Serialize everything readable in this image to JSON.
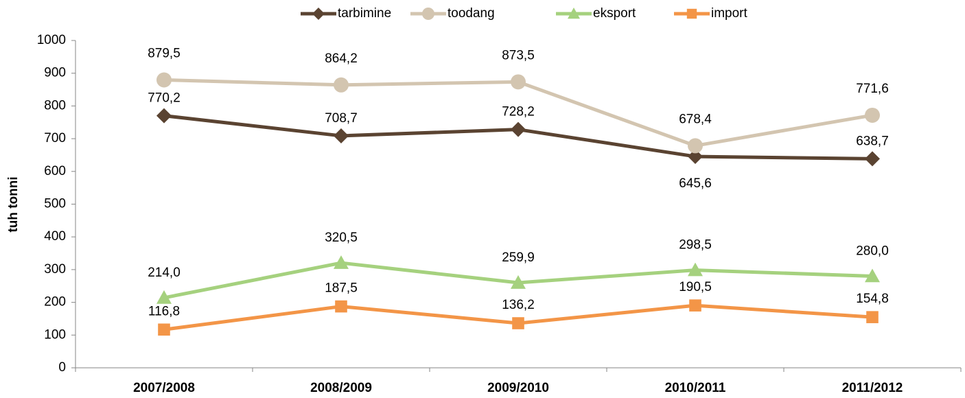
{
  "chart_data": {
    "type": "line",
    "y_label": "tuh tonni",
    "categories": [
      "2007/2008",
      "2008/2009",
      "2009/2010",
      "2010/2011",
      "2011/2012"
    ],
    "series": [
      {
        "name": "tarbimine",
        "color": "#5a4331",
        "marker": "diamond",
        "values": [
          770.2,
          708.7,
          728.2,
          645.6,
          638.7
        ],
        "value_labels": [
          "770,2",
          "708,7",
          "728,2",
          "645,6",
          "638,7"
        ]
      },
      {
        "name": "toodang",
        "color": "#d3c5b0",
        "marker": "circle",
        "values": [
          879.5,
          864.2,
          873.5,
          678.4,
          771.6
        ],
        "value_labels": [
          "879,5",
          "864,2",
          "873,5",
          "678,4",
          "771,6"
        ]
      },
      {
        "name": "eksport",
        "color": "#a5d17e",
        "marker": "triangle",
        "values": [
          214.0,
          320.5,
          259.9,
          298.5,
          280.0
        ],
        "value_labels": [
          "214,0",
          "320,5",
          "259,9",
          "298,5",
          "280,0"
        ]
      },
      {
        "name": "import",
        "color": "#f39547",
        "marker": "square",
        "values": [
          116.8,
          187.5,
          136.2,
          190.5,
          154.8
        ],
        "value_labels": [
          "116,8",
          "187,5",
          "136,2",
          "190,5",
          "154,8"
        ]
      }
    ],
    "ylim": [
      0,
      1000
    ],
    "yticks": [
      0,
      100,
      200,
      300,
      400,
      500,
      600,
      700,
      800,
      900,
      1000
    ],
    "grid": false,
    "legend": "top"
  }
}
